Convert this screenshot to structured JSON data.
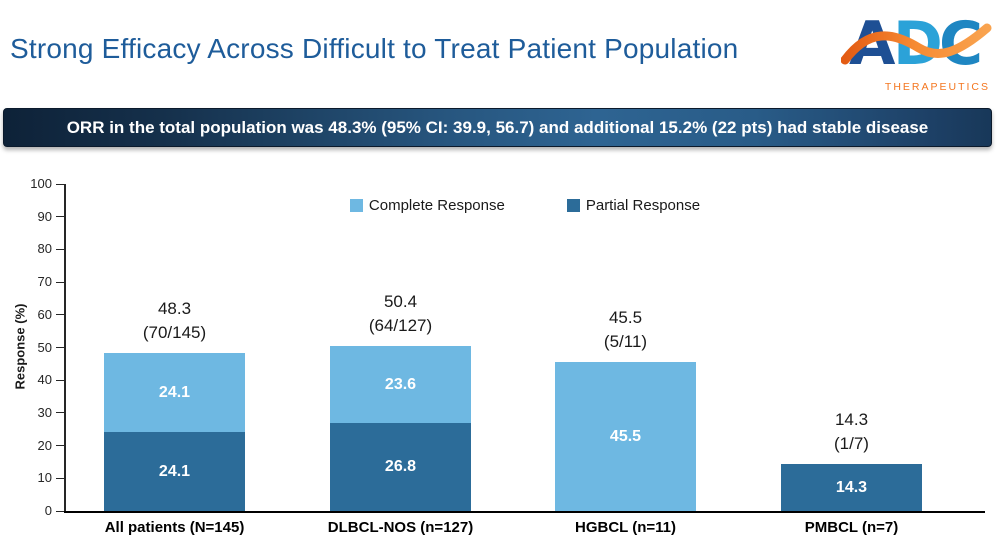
{
  "header": {
    "title": "Strong Efficacy Across Difficult to Treat Patient Population",
    "logo": {
      "letters": [
        "A",
        "D",
        "C"
      ],
      "subtext": "THERAPEUTICS"
    }
  },
  "banner": {
    "text": "ORR in the total population was 48.3% (95% CI: 39.9, 56.7) and additional 15.2% (22 pts) had stable disease"
  },
  "colors": {
    "title_blue": "#1E5C9A",
    "complete_response": "#6EB8E2",
    "partial_response": "#2C6C99",
    "banner_dark": "#0E2238",
    "banner_light": "#2E6492",
    "logo_orange": "#F4761F"
  },
  "chart_data": {
    "type": "bar",
    "stacked": true,
    "title": "",
    "xlabel": "",
    "ylabel": "Response (%)",
    "ylim": [
      0,
      100
    ],
    "yticks": [
      0,
      10,
      20,
      30,
      40,
      50,
      60,
      70,
      80,
      90,
      100
    ],
    "grid": false,
    "legend_position": "top-center",
    "legend": [
      {
        "name": "Complete Response",
        "color": "#6EB8E2"
      },
      {
        "name": "Partial Response",
        "color": "#2C6C99"
      }
    ],
    "categories": [
      "All patients (N=145)",
      "DLBCL-NOS (n=127)",
      "HGBCL (n=11)",
      "PMBCL (n=7)"
    ],
    "series": [
      {
        "name": "Partial Response",
        "color": "#2C6C99",
        "values": [
          24.1,
          26.8,
          0,
          14.3
        ]
      },
      {
        "name": "Complete Response",
        "color": "#6EB8E2",
        "values": [
          24.1,
          23.6,
          45.5,
          0
        ]
      }
    ],
    "segment_labels": [
      [
        "24.1",
        "24.1"
      ],
      [
        "26.8",
        "23.6"
      ],
      [
        "",
        "45.5"
      ],
      [
        "14.3",
        ""
      ]
    ],
    "totals": [
      {
        "value": "48.3",
        "fraction": "(70/145)"
      },
      {
        "value": "50.4",
        "fraction": "(64/127)"
      },
      {
        "value": "45.5",
        "fraction": "(5/11)"
      },
      {
        "value": "14.3",
        "fraction": "(1/7)"
      }
    ]
  }
}
